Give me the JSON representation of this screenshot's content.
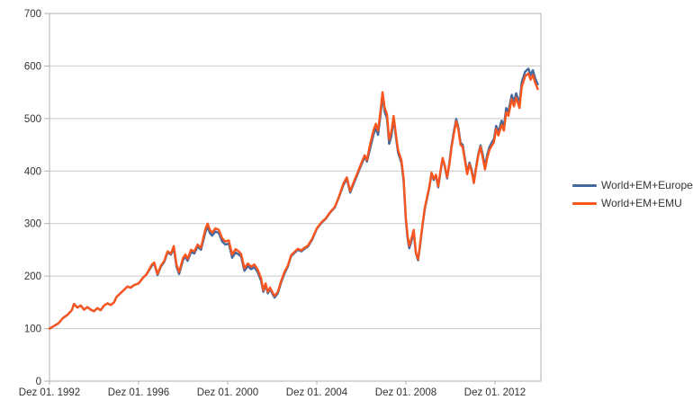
{
  "chart_data": {
    "type": "line",
    "title": "",
    "xlabel": "",
    "ylabel": "",
    "grid": "horizontal",
    "legend_position": "right",
    "ylim": [
      0,
      700
    ],
    "y_ticks": [
      0,
      100,
      200,
      300,
      400,
      500,
      600,
      700
    ],
    "x_axis_unit": "years since first point (Dez 01. 1992), monthly index data",
    "xlim_years": [
      0,
      22.06
    ],
    "x_ticks": [
      {
        "t": 0,
        "label": "Dez 01. 1992"
      },
      {
        "t": 4,
        "label": "Dez 01. 1996"
      },
      {
        "t": 8,
        "label": "Dez 01. 2000"
      },
      {
        "t": 12,
        "label": "Dez 01. 2004"
      },
      {
        "t": 16,
        "label": "Dez 01. 2008"
      },
      {
        "t": 20,
        "label": "Dez 01. 2012"
      }
    ],
    "t": [
      0,
      0.2,
      0.4,
      0.6,
      0.8,
      1.0,
      1.1,
      1.25,
      1.4,
      1.55,
      1.7,
      1.85,
      2.0,
      2.15,
      2.3,
      2.45,
      2.6,
      2.75,
      2.9,
      3.0,
      3.25,
      3.5,
      3.65,
      3.8,
      4.0,
      4.2,
      4.35,
      4.5,
      4.6,
      4.7,
      4.85,
      5.0,
      5.15,
      5.3,
      5.45,
      5.58,
      5.7,
      5.82,
      6.0,
      6.1,
      6.2,
      6.35,
      6.5,
      6.65,
      6.8,
      7.0,
      7.1,
      7.2,
      7.3,
      7.45,
      7.6,
      7.75,
      7.9,
      8.05,
      8.2,
      8.35,
      8.5,
      8.6,
      8.75,
      8.9,
      9.05,
      9.2,
      9.35,
      9.5,
      9.6,
      9.7,
      9.8,
      9.9,
      10.0,
      10.1,
      10.25,
      10.4,
      10.55,
      10.7,
      10.85,
      11.0,
      11.15,
      11.3,
      11.45,
      11.6,
      11.8,
      12.0,
      12.2,
      12.4,
      12.6,
      12.8,
      13.0,
      13.2,
      13.35,
      13.5,
      13.65,
      13.8,
      14.0,
      14.15,
      14.25,
      14.4,
      14.55,
      14.65,
      14.75,
      14.85,
      14.95,
      15.05,
      15.15,
      15.25,
      15.35,
      15.45,
      15.55,
      15.65,
      15.8,
      15.9,
      16.0,
      16.08,
      16.15,
      16.25,
      16.35,
      16.45,
      16.55,
      16.65,
      16.75,
      16.85,
      16.95,
      17.05,
      17.15,
      17.25,
      17.35,
      17.45,
      17.55,
      17.65,
      17.75,
      17.85,
      17.95,
      18.05,
      18.15,
      18.26,
      18.35,
      18.45,
      18.55,
      18.65,
      18.75,
      18.85,
      18.95,
      19.05,
      19.15,
      19.25,
      19.35,
      19.45,
      19.55,
      19.65,
      19.75,
      19.85,
      19.95,
      20.05,
      20.15,
      20.3,
      20.4,
      20.5,
      20.6,
      20.75,
      20.85,
      20.95,
      21.1,
      21.2,
      21.35,
      21.5,
      21.6,
      21.7,
      21.8,
      21.92
    ],
    "series": [
      {
        "name": "World+EM+Europe",
        "color": "#44689D",
        "values": [
          100,
          105,
          110,
          120,
          126,
          135,
          147,
          140,
          144,
          136,
          141,
          136,
          133,
          139,
          135,
          144,
          148,
          145,
          150,
          160,
          170,
          180,
          178,
          183,
          186,
          197,
          203,
          213,
          220,
          224,
          202,
          218,
          227,
          245,
          241,
          253,
          218,
          204,
          231,
          237,
          229,
          246,
          243,
          256,
          250,
          284,
          294,
          282,
          277,
          285,
          282,
          266,
          260,
          262,
          235,
          245,
          241,
          237,
          210,
          219,
          213,
          217,
          207,
          191,
          170,
          183,
          167,
          175,
          167,
          159,
          167,
          188,
          205,
          218,
          238,
          244,
          250,
          247,
          252,
          256,
          270,
          290,
          301,
          309,
          321,
          330,
          351,
          374,
          385,
          359,
          375,
          391,
          412,
          427,
          418,
          444,
          470,
          482,
          469,
          502,
          542,
          512,
          500,
          452,
          467,
          500,
          465,
          435,
          415,
          380,
          305,
          270,
          253,
          267,
          283,
          243,
          230,
          263,
          298,
          328,
          348,
          368,
          395,
          383,
          391,
          369,
          398,
          423,
          408,
          386,
          416,
          449,
          474,
          499,
          484,
          454,
          450,
          423,
          397,
          416,
          403,
          380,
          408,
          433,
          449,
          431,
          409,
          431,
          446,
          454,
          461,
          486,
          474,
          496,
          485,
          520,
          513,
          545,
          531,
          548,
          529,
          569,
          589,
          595,
          583,
          592,
          577,
          565
        ]
      },
      {
        "name": "World+EM+EMU",
        "color": "#FB551E",
        "values": [
          100,
          105,
          110,
          120,
          126,
          135,
          147,
          140,
          144,
          136,
          141,
          136,
          133,
          139,
          135,
          144,
          148,
          145,
          150,
          160,
          170,
          180,
          178,
          183,
          186,
          197,
          203,
          215,
          222,
          226,
          204,
          220,
          229,
          247,
          243,
          257,
          222,
          208,
          235,
          241,
          233,
          250,
          247,
          260,
          254,
          290,
          300,
          288,
          283,
          291,
          288,
          272,
          266,
          268,
          241,
          251,
          247,
          242,
          215,
          224,
          218,
          222,
          212,
          196,
          173,
          186,
          170,
          178,
          170,
          162,
          170,
          191,
          208,
          220,
          240,
          246,
          252,
          249,
          254,
          258,
          272,
          291,
          302,
          310,
          322,
          331,
          352,
          377,
          388,
          362,
          378,
          394,
          415,
          430,
          421,
          452,
          478,
          490,
          477,
          510,
          550,
          520,
          508,
          460,
          475,
          505,
          470,
          440,
          420,
          385,
          310,
          275,
          258,
          272,
          288,
          245,
          232,
          265,
          300,
          330,
          350,
          370,
          397,
          385,
          393,
          371,
          400,
          425,
          410,
          388,
          412,
          445,
          470,
          495,
          480,
          450,
          446,
          420,
          394,
          413,
          400,
          377,
          405,
          430,
          446,
          425,
          403,
          425,
          440,
          448,
          455,
          480,
          468,
          488,
          477,
          512,
          505,
          537,
          523,
          540,
          520,
          560,
          580,
          586,
          574,
          583,
          568,
          556
        ]
      }
    ],
    "legend": [
      {
        "label": "World+EM+Europe",
        "color": "#44689D"
      },
      {
        "label": "World+EM+EMU",
        "color": "#FB551E"
      }
    ],
    "style_colors": {
      "grid": "#C9C9C9",
      "axis_border": "#B0B0B0",
      "tick_text": "#333333",
      "background": "#FFFFFF"
    }
  }
}
